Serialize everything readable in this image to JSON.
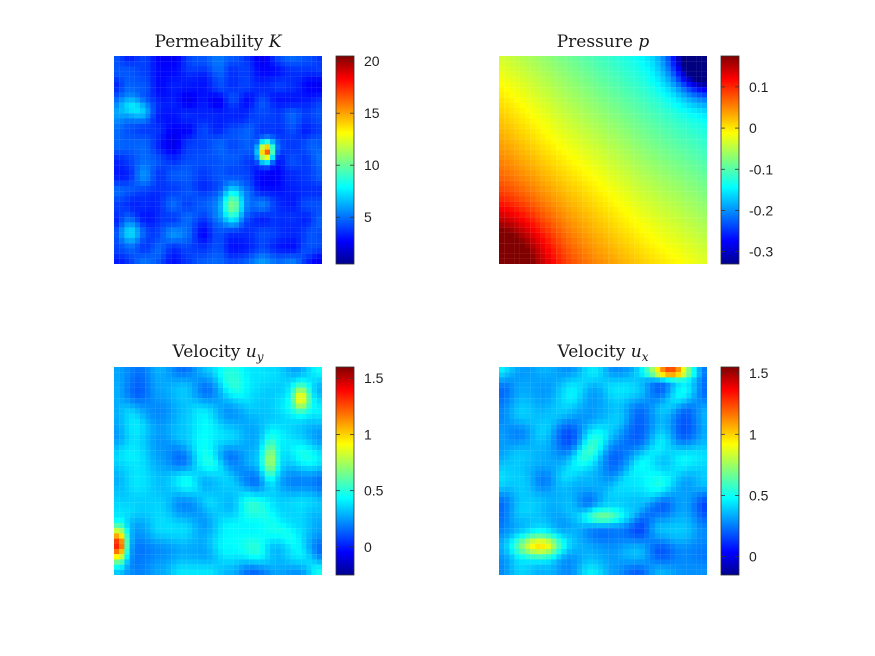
{
  "figure": {
    "colormap": "jet",
    "jet_stops": [
      "#00008f",
      "#0000ff",
      "#00ffff",
      "#ffff00",
      "#ff0000",
      "#800000"
    ]
  },
  "chart_data": [
    {
      "type": "heatmap",
      "id": "permeability",
      "title_text": "Permeability ",
      "title_symbol": "K",
      "colorbar": {
        "range": [
          0.5,
          20.5
        ],
        "ticks": [
          5,
          10,
          15,
          20
        ],
        "tick_labels": [
          "5",
          "10",
          "15",
          "20"
        ]
      },
      "field": "permeability"
    },
    {
      "type": "heatmap",
      "id": "pressure",
      "title_text": "Pressure ",
      "title_symbol": "p",
      "colorbar": {
        "range": [
          -0.33,
          0.175
        ],
        "ticks": [
          0.1,
          0,
          -0.1,
          -0.2,
          -0.3
        ],
        "tick_labels": [
          "0.1",
          "0",
          "-0.1",
          "-0.2",
          "-0.3"
        ]
      },
      "field": "pressure"
    },
    {
      "type": "heatmap",
      "id": "velocity_uy",
      "title_text": "Velocity ",
      "title_symbol": "u",
      "title_sub": "y",
      "colorbar": {
        "range": [
          -0.25,
          1.6
        ],
        "ticks": [
          1.5,
          1,
          0.5,
          0
        ],
        "tick_labels": [
          "1.5",
          "1",
          "0.5",
          "0"
        ]
      },
      "field": "velocity_uy"
    },
    {
      "type": "heatmap",
      "id": "velocity_ux",
      "title_text": "Velocity ",
      "title_symbol": "u",
      "title_sub": "x",
      "colorbar": {
        "range": [
          -0.15,
          1.55
        ],
        "ticks": [
          1.5,
          1,
          0.5,
          0
        ],
        "tick_labels": [
          "1.5",
          "1",
          "0.5",
          "0"
        ]
      },
      "field": "velocity_ux"
    }
  ]
}
